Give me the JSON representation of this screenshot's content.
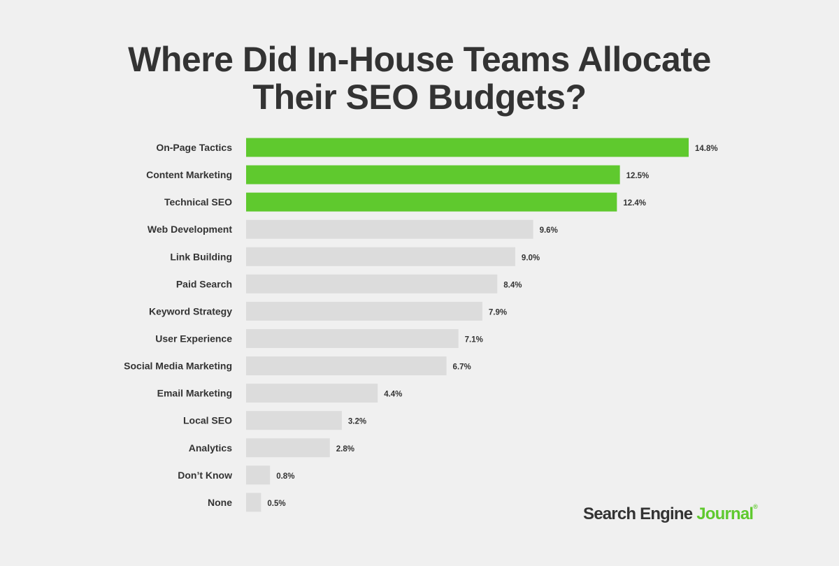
{
  "chart_data": {
    "type": "bar",
    "orientation": "horizontal",
    "title": "Where Did In-House Teams Allocate Their SEO Budgets?",
    "title_lines": [
      "Where Did In-House Teams Allocate",
      "Their SEO Budgets?"
    ],
    "categories": [
      "On-Page Tactics",
      "Content Marketing",
      "Technical SEO",
      "Web Development",
      "Link Building",
      "Paid Search",
      "Keyword Strategy",
      "User Experience",
      "Social Media Marketing",
      "Email Marketing",
      "Local SEO",
      "Analytics",
      "Don’t Know",
      "None"
    ],
    "values": [
      14.8,
      12.5,
      12.4,
      9.6,
      9.0,
      8.4,
      7.9,
      7.1,
      6.7,
      4.4,
      3.2,
      2.8,
      0.8,
      0.5
    ],
    "value_labels": [
      "14.8%",
      "12.5%",
      "12.4%",
      "9.6%",
      "9.0%",
      "8.4%",
      "7.9%",
      "7.1%",
      "6.7%",
      "4.4%",
      "3.2%",
      "2.8%",
      "0.8%",
      "0.5%"
    ],
    "highlighted_count": 3,
    "xlabel": "",
    "ylabel": "",
    "xlim": [
      0,
      14.8
    ],
    "grid": false,
    "legend": "none",
    "colors": {
      "highlight": "#5fc92e",
      "default": "#dcdcdc",
      "background": "#f0f0f0",
      "text": "#333333"
    }
  },
  "logo": {
    "text_main": "Search Engine",
    "text_accent": "Journal",
    "mark": "®"
  }
}
